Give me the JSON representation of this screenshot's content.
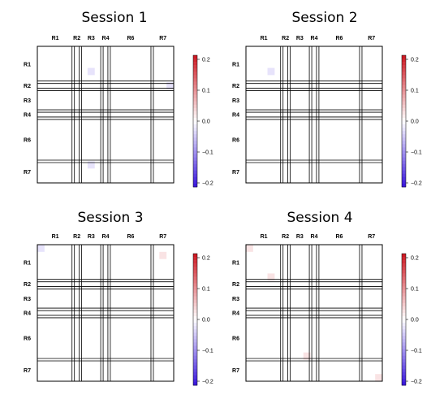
{
  "chart_data": [
    {
      "type": "heatmap",
      "title": "Session 1",
      "region_labels": [
        "R1",
        "R2",
        "R3",
        "R4",
        "R6",
        "R7"
      ],
      "region_sizes": [
        5,
        1,
        3,
        1,
        6,
        3
      ],
      "colorbar": {
        "min": -0.2,
        "max": 0.2,
        "ticks": [
          "0.2",
          "0.1",
          "0.0",
          "−0.1",
          "−0.2"
        ]
      },
      "cells": [
        {
          "row": 3,
          "col": 7,
          "value": -0.05
        },
        {
          "row": 5,
          "col": 18,
          "value": -0.05
        },
        {
          "row": 16,
          "col": 7,
          "value": -0.05
        }
      ]
    },
    {
      "type": "heatmap",
      "title": "Session 2",
      "region_labels": [
        "R1",
        "R2",
        "R3",
        "R4",
        "R6",
        "R7"
      ],
      "region_sizes": [
        5,
        1,
        3,
        1,
        6,
        3
      ],
      "colorbar": {
        "min": -0.2,
        "max": 0.2,
        "ticks": [
          "0.2",
          "0.1",
          "0.0",
          "−0.1",
          "−0.2"
        ]
      },
      "cells": [
        {
          "row": 3,
          "col": 3,
          "value": -0.05
        }
      ]
    },
    {
      "type": "heatmap",
      "title": "Session 3",
      "region_labels": [
        "R1",
        "R2",
        "R3",
        "R4",
        "R6",
        "R7"
      ],
      "region_sizes": [
        5,
        1,
        3,
        1,
        6,
        3
      ],
      "colorbar": {
        "min": -0.2,
        "max": 0.2,
        "ticks": [
          "0.2",
          "0.1",
          "0.0",
          "−0.1",
          "−0.2"
        ]
      },
      "cells": [
        {
          "row": 0,
          "col": 0,
          "value": -0.05
        },
        {
          "row": 1,
          "col": 17,
          "value": 0.05
        }
      ]
    },
    {
      "type": "heatmap",
      "title": "Session 4",
      "region_labels": [
        "R1",
        "R2",
        "R3",
        "R4",
        "R6",
        "R7"
      ],
      "region_sizes": [
        5,
        1,
        3,
        1,
        6,
        3
      ],
      "colorbar": {
        "min": -0.2,
        "max": 0.2,
        "ticks": [
          "0.2",
          "0.1",
          "0.0",
          "−0.1",
          "−0.2"
        ]
      },
      "cells": [
        {
          "row": 0,
          "col": 0,
          "value": 0.05
        },
        {
          "row": 4,
          "col": 3,
          "value": 0.05
        },
        {
          "row": 15,
          "col": 8,
          "value": 0.05
        },
        {
          "row": 18,
          "col": 18,
          "value": 0.05
        }
      ]
    }
  ]
}
